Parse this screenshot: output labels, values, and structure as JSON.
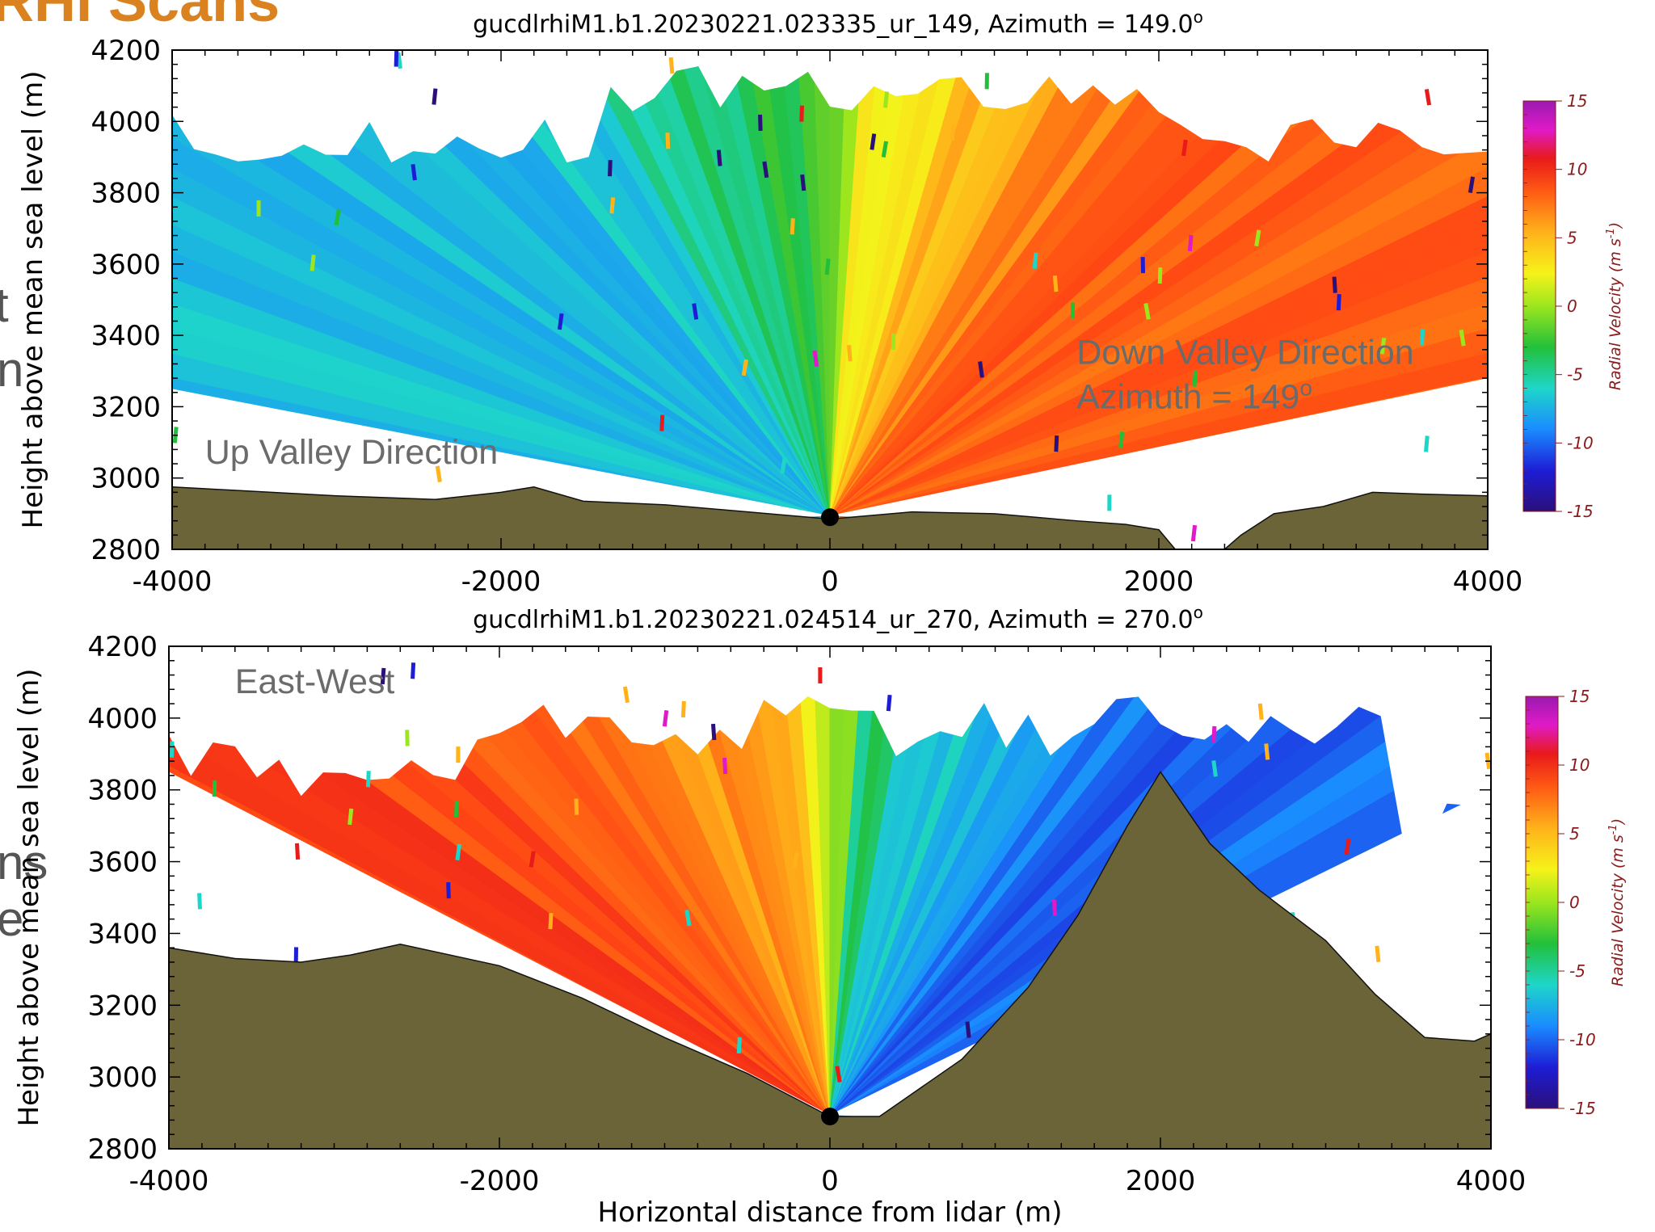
{
  "slide": {
    "title_fragment": "RHI Scans",
    "edge_fragments": [
      "t",
      "n",
      "ns",
      "e"
    ]
  },
  "colors": {
    "terrain": "#6b6439",
    "slide_title": "#d9821f",
    "annotation": "#6b6b6b",
    "colorbar_text": "#8b1a1a",
    "lidar_marker": "#000000"
  },
  "chart_data": [
    {
      "type": "heatmap",
      "title": "gucdlrhiM1.b1.20230221.023335_ur_149, Azimuth = 149.0",
      "title_superscript": "o",
      "xlabel": "",
      "ylabel": "Height above mean sea level (m)",
      "xlim": [
        -4000,
        4000
      ],
      "ylim": [
        2800,
        4200
      ],
      "x_ticks": [
        "-4000",
        "-2000",
        "0",
        "2000",
        "4000"
      ],
      "y_ticks": [
        "2800",
        "3000",
        "3200",
        "3400",
        "3600",
        "3800",
        "4000",
        "4200"
      ],
      "lidar_position": {
        "x": 0,
        "y": 2890
      },
      "terrain_profile": [
        [
          -4000,
          2975
        ],
        [
          -3600,
          2965
        ],
        [
          -3000,
          2950
        ],
        [
          -2400,
          2940
        ],
        [
          -2000,
          2960
        ],
        [
          -1800,
          2975
        ],
        [
          -1500,
          2935
        ],
        [
          -1000,
          2925
        ],
        [
          -500,
          2905
        ],
        [
          0,
          2885
        ],
        [
          500,
          2905
        ],
        [
          1000,
          2900
        ],
        [
          1500,
          2880
        ],
        [
          1800,
          2870
        ],
        [
          2000,
          2855
        ],
        [
          2100,
          2800
        ],
        [
          2400,
          2800
        ],
        [
          2500,
          2840
        ],
        [
          2700,
          2900
        ],
        [
          3000,
          2920
        ],
        [
          3300,
          2960
        ],
        [
          3600,
          2955
        ],
        [
          4000,
          2950
        ]
      ],
      "velocity_field": {
        "left_side": "negative (green to cyan, about -5 to -8)",
        "right_side": "positive (yellow to orange-red, about +2 to +7)"
      },
      "colorbar": {
        "label": "Radial Velocity (m s",
        "label_superscript": "-1",
        "label_close": ")",
        "ticks": [
          "15",
          "10",
          "5",
          "0",
          "-5",
          "-10",
          "-15"
        ],
        "range": [
          -15,
          15
        ]
      },
      "annotations": [
        {
          "text": "Up Valley Direction",
          "x": -3800,
          "y": 3040
        },
        {
          "text": "Down Valley Direction",
          "x": 1500,
          "y": 3320
        },
        {
          "text": "Azimuth = 149",
          "superscript": "o",
          "x": 1500,
          "y": 3195
        }
      ]
    },
    {
      "type": "heatmap",
      "title": "gucdlrhiM1.b1.20230221.024514_ur_270, Azimuth = 270.0",
      "title_superscript": "o",
      "xlabel": "Horizontal distance from lidar (m)",
      "ylabel": "Height above mean sea level (m)",
      "xlim": [
        -4000,
        4000
      ],
      "ylim": [
        2800,
        4200
      ],
      "x_ticks": [
        "-4000",
        "-2000",
        "0",
        "2000",
        "4000"
      ],
      "y_ticks": [
        "2800",
        "3000",
        "3200",
        "3400",
        "3600",
        "3800",
        "4000",
        "4200"
      ],
      "lidar_position": {
        "x": 0,
        "y": 2890
      },
      "terrain_profile": [
        [
          -4000,
          3360
        ],
        [
          -3600,
          3330
        ],
        [
          -3200,
          3320
        ],
        [
          -2900,
          3340
        ],
        [
          -2600,
          3370
        ],
        [
          -2000,
          3310
        ],
        [
          -1500,
          3220
        ],
        [
          -1000,
          3110
        ],
        [
          -500,
          3010
        ],
        [
          0,
          2890
        ],
        [
          300,
          2890
        ],
        [
          800,
          3050
        ],
        [
          1200,
          3250
        ],
        [
          1500,
          3450
        ],
        [
          1800,
          3700
        ],
        [
          2000,
          3850
        ],
        [
          2300,
          3650
        ],
        [
          2600,
          3520
        ],
        [
          3000,
          3380
        ],
        [
          3300,
          3230
        ],
        [
          3600,
          3110
        ],
        [
          3900,
          3100
        ],
        [
          4000,
          3120
        ]
      ],
      "velocity_field": {
        "left_side": "positive (orange to red, about +3 to +8)",
        "right_side": "negative (green to cyan/blue, about -5 to -10)"
      },
      "colorbar": {
        "label": "Radial Velocity (m s",
        "label_superscript": "-1",
        "label_close": ")",
        "ticks": [
          "15",
          "10",
          "5",
          "0",
          "-5",
          "-10",
          "-15"
        ],
        "range": [
          -15,
          15
        ]
      },
      "annotations": [
        {
          "text": "East-West",
          "x": -3600,
          "y": 4070
        }
      ]
    }
  ]
}
